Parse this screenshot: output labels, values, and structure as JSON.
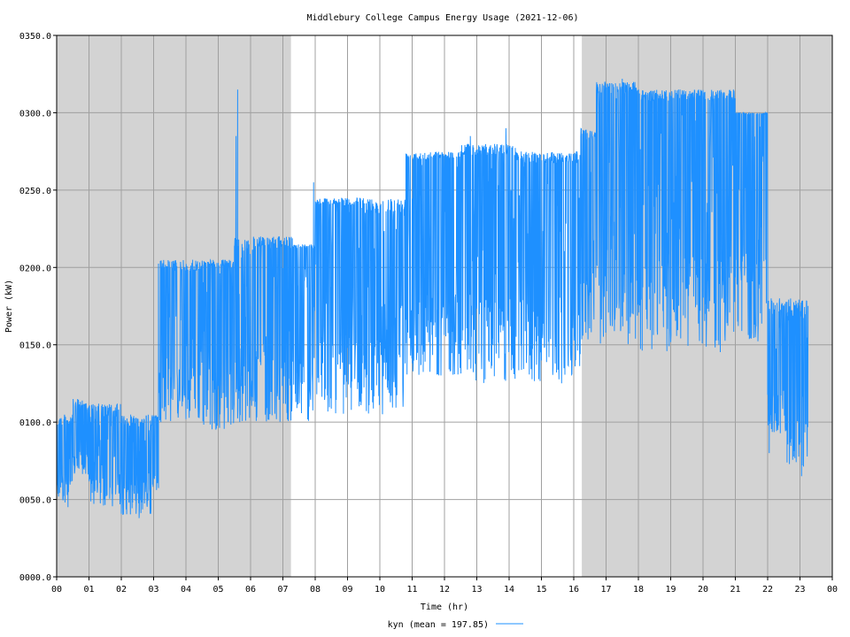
{
  "chart_data": {
    "type": "line",
    "title": "Middlebury College Campus Energy Usage (2021-12-06)",
    "xlabel": "Time (hr)",
    "ylabel": "Power (kW)",
    "xlim": [
      0,
      24
    ],
    "ylim": [
      0,
      350
    ],
    "x_ticks": [
      "00",
      "01",
      "02",
      "03",
      "04",
      "05",
      "06",
      "07",
      "08",
      "09",
      "10",
      "11",
      "12",
      "13",
      "14",
      "15",
      "16",
      "17",
      "18",
      "19",
      "20",
      "21",
      "22",
      "23",
      "00"
    ],
    "y_ticks": [
      "0000.0",
      "0050.0",
      "0100.0",
      "0150.0",
      "0200.0",
      "0250.0",
      "0300.0",
      "0350.0"
    ],
    "grid": true,
    "shaded_hours": [
      [
        0,
        7.25
      ],
      [
        16.25,
        24
      ]
    ],
    "shade_color": "#d3d3d3",
    "legend_position": "bottom-center",
    "series": [
      {
        "name": "kyn (mean = 197.85)",
        "color": "#1e90ff",
        "segments": [
          {
            "x0": 0.0,
            "x1": 0.5,
            "lo": 48,
            "hi": 105,
            "base": 90
          },
          {
            "x0": 0.5,
            "x1": 1.0,
            "lo": 65,
            "hi": 115,
            "base": 100
          },
          {
            "x0": 1.0,
            "x1": 2.0,
            "lo": 45,
            "hi": 112,
            "base": 92
          },
          {
            "x0": 2.0,
            "x1": 2.95,
            "lo": 40,
            "hi": 105,
            "base": 88
          },
          {
            "x0": 2.95,
            "x1": 3.15,
            "lo": 55,
            "hi": 105,
            "base": 100
          },
          {
            "x0": 3.15,
            "x1": 4.5,
            "lo": 100,
            "hi": 205,
            "base": 190
          },
          {
            "x0": 4.5,
            "x1": 5.5,
            "lo": 95,
            "hi": 205,
            "base": 195
          },
          {
            "x0": 5.5,
            "x1": 6.2,
            "lo": 100,
            "hi": 220,
            "base": 200
          },
          {
            "x0": 6.2,
            "x1": 7.3,
            "lo": 100,
            "hi": 220,
            "base": 205
          },
          {
            "x0": 7.3,
            "x1": 8.0,
            "lo": 100,
            "hi": 215,
            "base": 210
          },
          {
            "x0": 8.0,
            "x1": 9.5,
            "lo": 105,
            "hi": 245,
            "base": 235
          },
          {
            "x0": 9.5,
            "x1": 10.8,
            "lo": 105,
            "hi": 245,
            "base": 225
          },
          {
            "x0": 10.8,
            "x1": 12.5,
            "lo": 130,
            "hi": 275,
            "base": 265
          },
          {
            "x0": 12.5,
            "x1": 14.2,
            "lo": 125,
            "hi": 280,
            "base": 265
          },
          {
            "x0": 14.2,
            "x1": 16.2,
            "lo": 125,
            "hi": 275,
            "base": 260
          },
          {
            "x0": 16.2,
            "x1": 16.7,
            "lo": 150,
            "hi": 290,
            "base": 275
          },
          {
            "x0": 16.7,
            "x1": 18.0,
            "lo": 150,
            "hi": 320,
            "base": 305
          },
          {
            "x0": 18.0,
            "x1": 19.5,
            "lo": 145,
            "hi": 315,
            "base": 300
          },
          {
            "x0": 19.5,
            "x1": 21.0,
            "lo": 145,
            "hi": 315,
            "base": 300
          },
          {
            "x0": 21.0,
            "x1": 22.0,
            "lo": 150,
            "hi": 300,
            "base": 298
          },
          {
            "x0": 22.0,
            "x1": 22.6,
            "lo": 90,
            "hi": 180,
            "base": 160
          },
          {
            "x0": 22.6,
            "x1": 23.25,
            "lo": 70,
            "hi": 180,
            "base": 150
          }
        ],
        "spikes": [
          {
            "x": 5.6,
            "y": 315
          },
          {
            "x": 5.55,
            "y": 285
          },
          {
            "x": 7.95,
            "y": 255
          },
          {
            "x": 12.8,
            "y": 285
          },
          {
            "x": 13.9,
            "y": 290
          },
          {
            "x": 17.5,
            "y": 322
          },
          {
            "x": 22.05,
            "y": 80
          },
          {
            "x": 23.05,
            "y": 65
          },
          {
            "x": 2.55,
            "y": 38
          },
          {
            "x": 0.35,
            "y": 45
          }
        ]
      }
    ]
  }
}
